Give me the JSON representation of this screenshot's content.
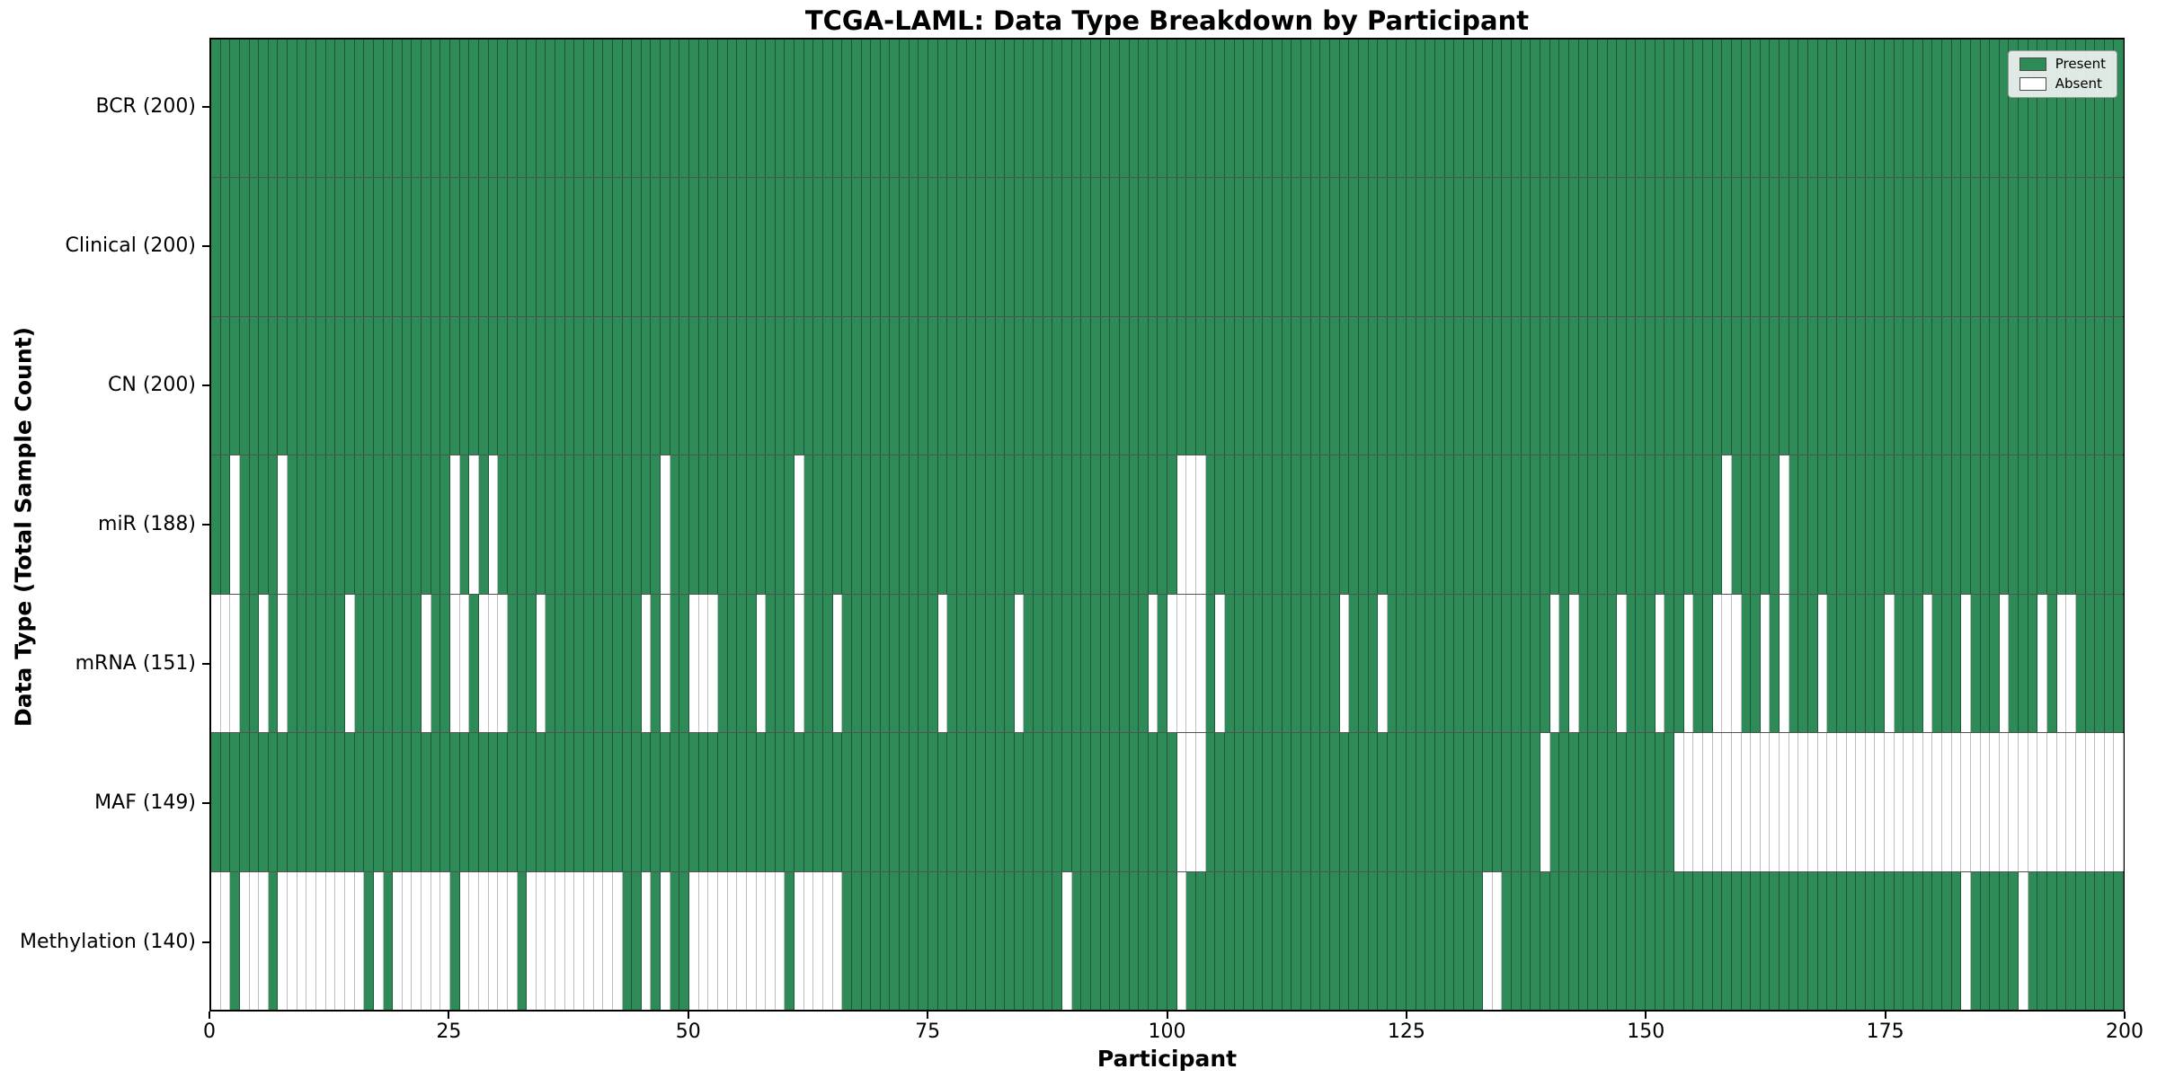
{
  "chart_data": {
    "type": "heatmap",
    "title": "TCGA-LAML: Data Type Breakdown by Participant",
    "xlabel": "Participant",
    "ylabel": "Data Type (Total Sample Count)",
    "n_participants": 200,
    "x_ticks": [
      0,
      25,
      50,
      75,
      100,
      125,
      150,
      175,
      200
    ],
    "xlim": [
      0,
      200
    ],
    "grid": "off",
    "legend_position": "upper right",
    "colors": {
      "present": "#2e8b57",
      "absent": "#ffffff"
    },
    "legend_items": [
      {
        "label": "Present",
        "color": "#2e8b57"
      },
      {
        "label": "Absent",
        "color": "#ffffff"
      }
    ],
    "rows": [
      {
        "name": "BCR",
        "label": "BCR (200)",
        "total": 200,
        "absent": []
      },
      {
        "name": "Clinical",
        "label": "Clinical (200)",
        "total": 200,
        "absent": []
      },
      {
        "name": "CN",
        "label": "CN (200)",
        "total": 200,
        "absent": []
      },
      {
        "name": "miR",
        "label": "miR (188)",
        "total": 188,
        "absent": [
          2,
          7,
          25,
          27,
          29,
          47,
          61,
          101,
          102,
          103,
          158,
          164
        ]
      },
      {
        "name": "mRNA",
        "label": "mRNA (151)",
        "total": 151,
        "absent": [
          0,
          1,
          2,
          5,
          7,
          14,
          22,
          25,
          26,
          28,
          29,
          30,
          34,
          45,
          47,
          50,
          51,
          52,
          57,
          61,
          65,
          76,
          84,
          98,
          100,
          101,
          102,
          103,
          105,
          118,
          122,
          140,
          142,
          147,
          151,
          154,
          157,
          158,
          159,
          162,
          164,
          168,
          175,
          179,
          183,
          187,
          191,
          193,
          194
        ]
      },
      {
        "name": "MAF",
        "label": "MAF (149)",
        "total": 149,
        "absent": [
          101,
          102,
          103,
          139,
          153,
          154,
          155,
          156,
          157,
          158,
          159,
          160,
          161,
          162,
          163,
          164,
          165,
          166,
          167,
          168,
          169,
          170,
          171,
          172,
          173,
          174,
          175,
          176,
          177,
          178,
          179,
          180,
          181,
          182,
          183,
          184,
          185,
          186,
          187,
          188,
          189,
          190,
          191,
          192,
          193,
          194,
          195,
          196,
          197,
          198,
          199
        ]
      },
      {
        "name": "Methylation",
        "label": "Methylation (140)",
        "total": 140,
        "absent": [
          0,
          1,
          3,
          4,
          5,
          7,
          8,
          9,
          10,
          11,
          12,
          13,
          14,
          15,
          17,
          19,
          20,
          21,
          22,
          23,
          24,
          26,
          27,
          28,
          29,
          30,
          31,
          33,
          34,
          35,
          36,
          37,
          38,
          39,
          40,
          41,
          42,
          45,
          47,
          50,
          51,
          52,
          53,
          54,
          55,
          56,
          57,
          58,
          59,
          61,
          62,
          63,
          64,
          65,
          89,
          101,
          133,
          134,
          183,
          189
        ]
      }
    ]
  }
}
